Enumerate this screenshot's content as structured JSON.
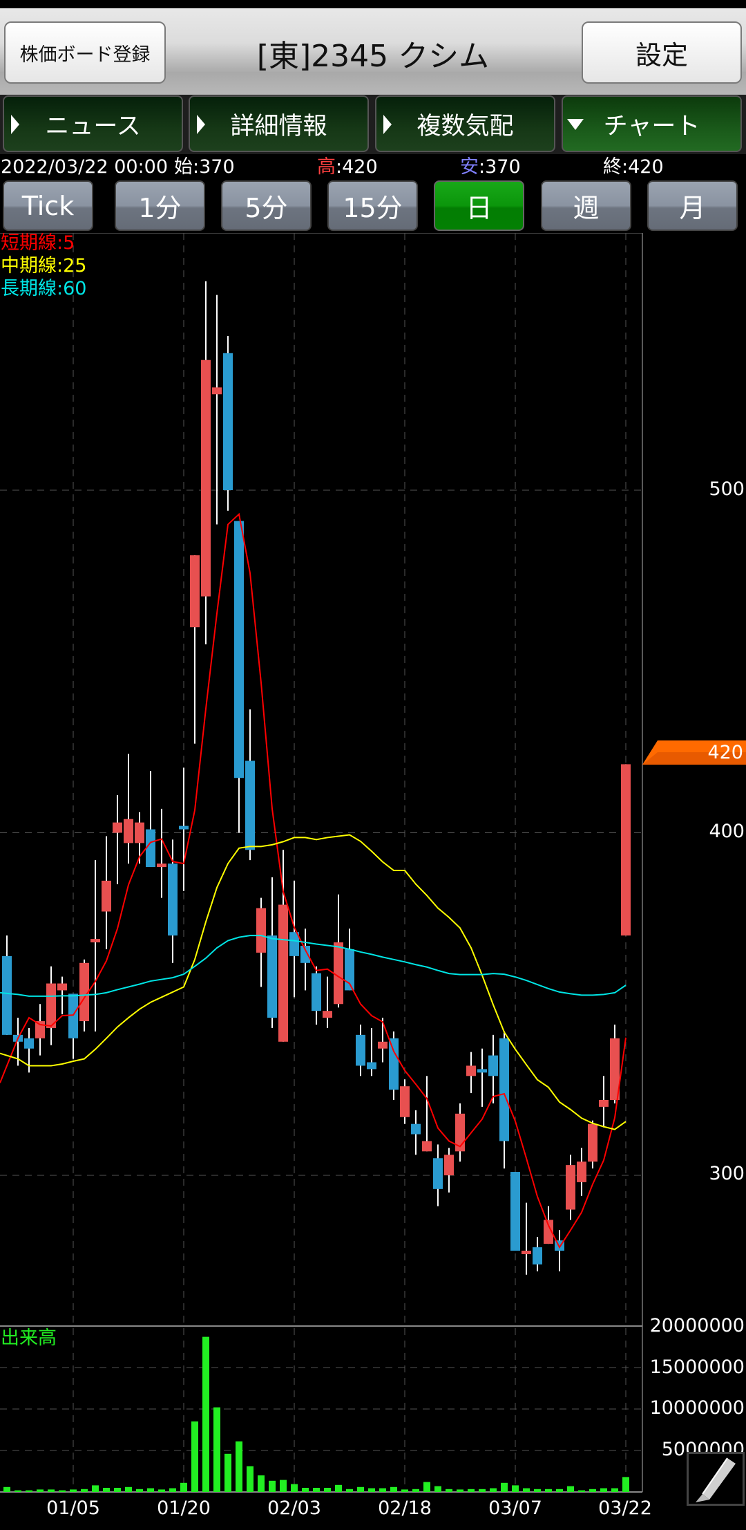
{
  "header": {
    "register_button": "株価ボード登録",
    "title": "[東]2345 クシム",
    "settings_button": "設定"
  },
  "tabs": [
    {
      "label": "ニュース",
      "icon": "triangle-right-icon",
      "active": false
    },
    {
      "label": "詳細情報",
      "icon": "triangle-right-icon",
      "active": false
    },
    {
      "label": "複数気配",
      "icon": "triangle-right-icon",
      "active": false
    },
    {
      "label": "チャート",
      "icon": "triangle-down-icon",
      "active": true
    }
  ],
  "quote": {
    "datetime": "2022/03/22 00:00",
    "open_label": "始",
    "open": ":370",
    "high_label": "高",
    "high": ":420",
    "low_label": "安",
    "low": ":370",
    "close_label": "終",
    "close": ":420"
  },
  "periods": [
    {
      "label": "Tick",
      "active": false
    },
    {
      "label": "1分",
      "active": false
    },
    {
      "label": "5分",
      "active": false
    },
    {
      "label": "15分",
      "active": false
    },
    {
      "label": "日",
      "active": true
    },
    {
      "label": "週",
      "active": false
    },
    {
      "label": "月",
      "active": false
    }
  ],
  "ma_legend": [
    {
      "label": "短期線:5",
      "color": "#ff0000"
    },
    {
      "label": "中期線:25",
      "color": "#ffff00"
    },
    {
      "label": "長期線:60",
      "color": "#00e5e5"
    }
  ],
  "volume_label": "出来高",
  "current_price_tag": "420",
  "colors": {
    "up": "#e85050",
    "down": "#2a9bd0",
    "volume": "#22ee22",
    "tag": "#ff6a00"
  },
  "chart_data": {
    "type": "candlestick",
    "price_axis": {
      "ticks": [
        "500",
        "400",
        "300"
      ],
      "tick_values": [
        500,
        400,
        300
      ],
      "range": [
        255,
        575
      ],
      "grid": true
    },
    "x_ticks": [
      {
        "label": "01/05",
        "index": 6
      },
      {
        "label": "01/20",
        "index": 16
      },
      {
        "label": "02/03",
        "index": 26
      },
      {
        "label": "02/18",
        "index": 36
      },
      {
        "label": "03/07",
        "index": 46
      },
      {
        "label": "03/22",
        "index": 56
      }
    ],
    "ohlc": [
      [
        364,
        370,
        341,
        341
      ],
      [
        341,
        346,
        332,
        339
      ],
      [
        340,
        343,
        330,
        337
      ],
      [
        340,
        350,
        335,
        345
      ],
      [
        343,
        361,
        338,
        356
      ],
      [
        354,
        358,
        347,
        356
      ],
      [
        353,
        353,
        334,
        340
      ],
      [
        345,
        363,
        342,
        362
      ],
      [
        368,
        392,
        342,
        369
      ],
      [
        377,
        399,
        366,
        386
      ],
      [
        400,
        411,
        385,
        403
      ],
      [
        397,
        423,
        391,
        404
      ],
      [
        397,
        406,
        391,
        403
      ],
      [
        401,
        418,
        390,
        390
      ],
      [
        390,
        407,
        381,
        391
      ],
      [
        391,
        398,
        362,
        370
      ],
      [
        402,
        419,
        383,
        401
      ],
      [
        460,
        481,
        426,
        481
      ],
      [
        469,
        561,
        455,
        538
      ],
      [
        528,
        557,
        490,
        530
      ],
      [
        540,
        545,
        494,
        500
      ],
      [
        491,
        491,
        400,
        416
      ],
      [
        421,
        436,
        392,
        395
      ],
      [
        365,
        381,
        355,
        378
      ],
      [
        370,
        387,
        343,
        346
      ],
      [
        339,
        395,
        339,
        379
      ],
      [
        371,
        386,
        352,
        364
      ],
      [
        367,
        372,
        354,
        362
      ],
      [
        359,
        361,
        344,
        348
      ],
      [
        346,
        358,
        343,
        348
      ],
      [
        350,
        382,
        349,
        368
      ],
      [
        366,
        372,
        354,
        354
      ],
      [
        341,
        344,
        329,
        332
      ],
      [
        333,
        343,
        329,
        331
      ],
      [
        337,
        346,
        333,
        339
      ],
      [
        340,
        342,
        322,
        325
      ],
      [
        317,
        328,
        315,
        326
      ],
      [
        315,
        319,
        306,
        312
      ],
      [
        307,
        329,
        307,
        310
      ],
      [
        305,
        309,
        291,
        296
      ],
      [
        300,
        308,
        295,
        306
      ],
      [
        307,
        321,
        304,
        318
      ],
      [
        329,
        336,
        324,
        332
      ],
      [
        331,
        337,
        320,
        330
      ],
      [
        335,
        341,
        321,
        329
      ],
      [
        340,
        342,
        302,
        310
      ],
      [
        301,
        301,
        278,
        278
      ],
      [
        277,
        292,
        271,
        278
      ],
      [
        279,
        282,
        272,
        274
      ],
      [
        280,
        291,
        280,
        287
      ],
      [
        281,
        284,
        272,
        278
      ],
      [
        290,
        306,
        287,
        303
      ],
      [
        298,
        308,
        294,
        304
      ],
      [
        304,
        316,
        302,
        315
      ],
      [
        320,
        329,
        314,
        322
      ],
      [
        322,
        344,
        321,
        340
      ],
      [
        370,
        420,
        370,
        420
      ]
    ],
    "ma": [
      {
        "name": "短期線:5",
        "color": "#ff0000",
        "values": [
          327,
          340,
          346,
          344,
          343.6,
          346.6,
          346.8,
          351.8,
          356.6,
          362.6,
          372,
          384.8,
          393,
          397.2,
          398.2,
          391.6,
          391,
          406.6,
          436.2,
          464,
          490,
          493,
          475.8,
          443.8,
          407,
          382.8,
          372.4,
          365.8,
          359.8,
          360.2,
          358,
          356,
          350,
          346.6,
          344.8,
          336.2,
          330.6,
          326.6,
          322.4,
          313.8,
          310,
          308.4,
          312.4,
          316.4,
          323,
          323.8,
          315.8,
          305,
          293.8,
          285.4,
          279,
          284,
          289.2,
          297.4,
          304.4,
          316.8,
          340.2
        ]
      },
      {
        "name": "中期線:25",
        "color": "#ffff00",
        "values": [
          335.6,
          334,
          332,
          332,
          332,
          332.5,
          333.3,
          334,
          336.8,
          340,
          343.3,
          346,
          348.5,
          350.5,
          352,
          353.5,
          355,
          363,
          374,
          384,
          391,
          395.5,
          396,
          396,
          396.5,
          397.4,
          398.6,
          398.6,
          398,
          398.6,
          399,
          399.4,
          397.5,
          394.6,
          391.5,
          389,
          389,
          385,
          381.7,
          378,
          375.3,
          372.2,
          366.4,
          358.4,
          349.8,
          341.8,
          336.8,
          332.3,
          327.9,
          325.7,
          321.4,
          319.2,
          316.7,
          315.2,
          314.2,
          313.4,
          315.7
        ]
      },
      {
        "name": "長期線:60",
        "color": "#00e5e5",
        "values": [
          353.3,
          352.8,
          352.3,
          352.3,
          352.3,
          352.4,
          352.4,
          352.6,
          352.8,
          353.3,
          354.2,
          355,
          355.8,
          356.7,
          357.2,
          357.7,
          358.7,
          361,
          363.4,
          366.4,
          368.5,
          369.5,
          370,
          370,
          369.1,
          368.8,
          368.5,
          368,
          367.5,
          367.1,
          366.7,
          366,
          365.2,
          364.5,
          363.7,
          363,
          362.3,
          361.5,
          360.8,
          359.8,
          358.9,
          358.6,
          358.6,
          358.6,
          358.9,
          358.7,
          357.9,
          356.9,
          355.7,
          354.5,
          353.5,
          353,
          352.6,
          352.6,
          352.8,
          353.3,
          355.5
        ]
      }
    ],
    "volume": {
      "axis_ticks": [
        "20000000",
        "15000000",
        "10000000",
        "5000000"
      ],
      "tick_values": [
        20000000,
        15000000,
        10000000,
        5000000
      ],
      "range": [
        0,
        20000000
      ],
      "values": [
        600000,
        200000,
        200000,
        300000,
        300000,
        200000,
        300000,
        350000,
        800000,
        500000,
        500000,
        600000,
        350000,
        450000,
        300000,
        450000,
        1100000,
        8500000,
        18700000,
        10200000,
        4600000,
        6100000,
        3100000,
        2000000,
        1350000,
        1450000,
        950000,
        500000,
        500000,
        500000,
        850000,
        350000,
        600000,
        450000,
        450000,
        600000,
        300000,
        350000,
        1200000,
        700000,
        350000,
        300000,
        350000,
        350000,
        450000,
        1100000,
        800000,
        450000,
        350000,
        350000,
        350000,
        700000,
        200000,
        350000,
        450000,
        450000,
        1800000
      ]
    }
  }
}
